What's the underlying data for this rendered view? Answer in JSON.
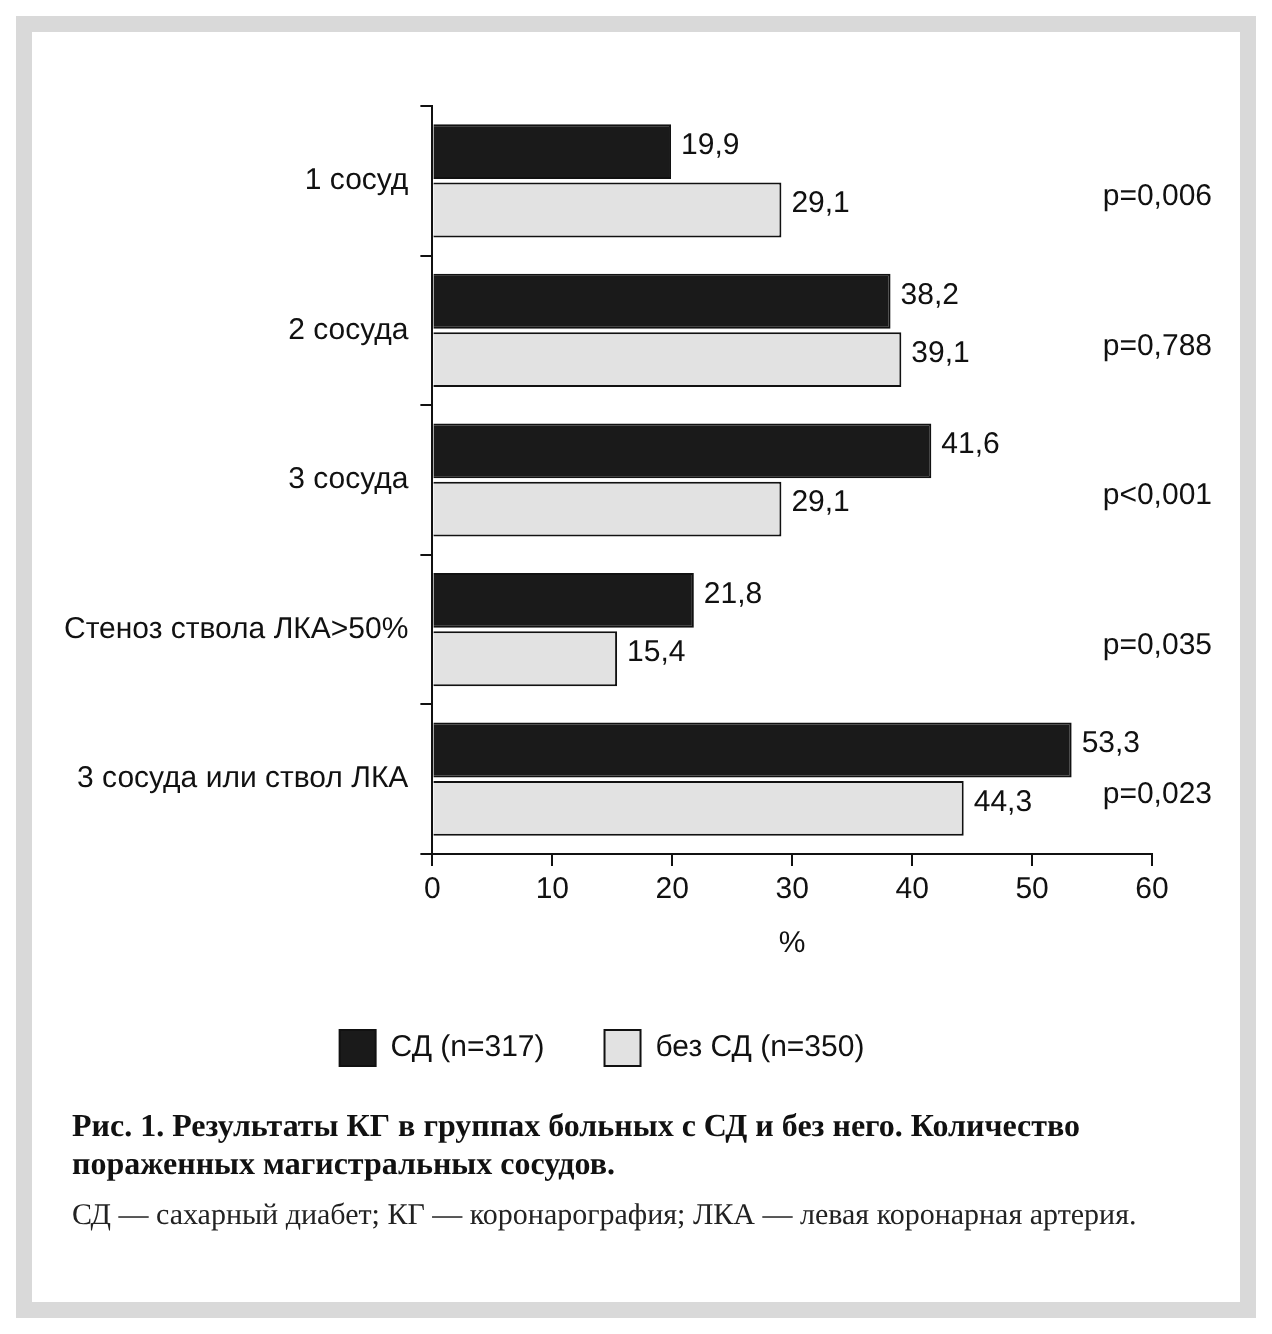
{
  "chart_data": {
    "type": "bar",
    "orientation": "horizontal",
    "title": "Рис. 1. Результаты КГ в группах больных с СД и без него. Количество пораженных магистральных сосудов.",
    "xlabel": "%",
    "categories": [
      "1 сосуд",
      "2 сосуда",
      "3 сосуда",
      "Стеноз ствола ЛКА>50%",
      "3 сосуда или ствол ЛКА"
    ],
    "series": [
      {
        "name": "СД (n=317)",
        "color": "#1a1a1a",
        "values": [
          19.9,
          38.2,
          41.6,
          21.8,
          53.3
        ],
        "value_labels": [
          "19,9",
          "38,2",
          "41,6",
          "21,8",
          "53,3"
        ]
      },
      {
        "name": "без СД (n=350)",
        "color": "#e2e2e2",
        "values": [
          29.1,
          39.1,
          29.1,
          15.4,
          44.3
        ],
        "value_labels": [
          "29,1",
          "39,1",
          "29,1",
          "15,4",
          "44,3"
        ]
      }
    ],
    "xlim": [
      0,
      60
    ],
    "xticks": [
      0,
      10,
      20,
      30,
      40,
      50,
      60
    ],
    "grid": false,
    "legend": "bottom",
    "annotations": [
      "p=0,006",
      "p=0,788",
      "p<0,001",
      "p=0,035",
      "p=0,023",
      "СД — сахарный диабет; КГ — коронарография; ЛКА — левая коронарная артерия."
    ]
  }
}
